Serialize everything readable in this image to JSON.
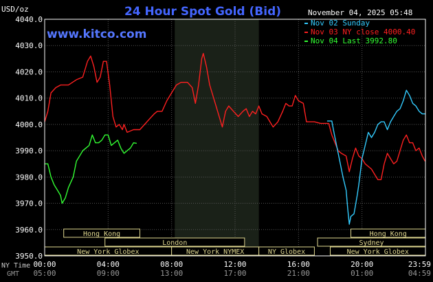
{
  "chart_data": {
    "type": "line",
    "title": "24 Hour Spot Gold (Bid)",
    "unit_label": "USD/oz",
    "timestamp": "November 04, 2025 05:48",
    "watermark": "www.kitco.com",
    "ylim": [
      3950,
      4040
    ],
    "y_ticks": [
      "4040.0",
      "4030.0",
      "4020.0",
      "4010.0",
      "4000.0",
      "3990.0",
      "3980.0",
      "3970.0",
      "3960.0",
      "3950.0"
    ],
    "x_ticks_ny": [
      "00:00",
      "04:00",
      "08:00",
      "12:00",
      "16:00",
      "20:00",
      "23:59"
    ],
    "x_ticks_gmt": [
      "05:00",
      "09:00",
      "13:00",
      "17:00",
      "21:00",
      "01:00",
      "04:59"
    ],
    "x_row_labels": {
      "ny": "NY Time",
      "gmt": "GMT"
    },
    "legend": [
      {
        "label": "Nov 02 Sunday",
        "color": "#33ccff"
      },
      {
        "label": "Nov 03 NY close 4000.40",
        "color": "#ff2020"
      },
      {
        "label": "Nov 04 Last 3992.80",
        "color": "#33ff33"
      }
    ],
    "sessions": [
      {
        "label": "Hong Kong",
        "start": 1.2,
        "end": 6.0,
        "row": 0
      },
      {
        "label": "Hong Kong",
        "start": 19.3,
        "end": 24.0,
        "row": 0
      },
      {
        "label": "London",
        "start": 3.8,
        "end": 12.6,
        "row": 1
      },
      {
        "label": "Sydney",
        "start": 17.2,
        "end": 24.0,
        "row": 1
      },
      {
        "label": "New York Globex",
        "start": 0.0,
        "end": 8.0,
        "row": 2
      },
      {
        "label": "New York NYMEX",
        "start": 8.0,
        "end": 13.5,
        "row": 2
      },
      {
        "label": "NY Globex",
        "start": 13.5,
        "end": 17.0,
        "row": 2
      },
      {
        "label": "New York Globex",
        "start": 18.0,
        "end": 24.0,
        "row": 2
      }
    ],
    "highlight_period": [
      8.2,
      13.5
    ],
    "series": [
      {
        "name": "Nov 03",
        "color": "#ff2020",
        "points": [
          [
            0.0,
            4001
          ],
          [
            0.2,
            4005
          ],
          [
            0.4,
            4012
          ],
          [
            0.7,
            4014
          ],
          [
            1.0,
            4015
          ],
          [
            1.5,
            4015
          ],
          [
            2.0,
            4017
          ],
          [
            2.4,
            4018
          ],
          [
            2.7,
            4024
          ],
          [
            2.9,
            4026
          ],
          [
            3.1,
            4022
          ],
          [
            3.3,
            4016
          ],
          [
            3.5,
            4018
          ],
          [
            3.7,
            4024
          ],
          [
            3.9,
            4024
          ],
          [
            4.1,
            4015
          ],
          [
            4.3,
            4003
          ],
          [
            4.5,
            3999
          ],
          [
            4.7,
            4000
          ],
          [
            4.9,
            3998
          ],
          [
            5.0,
            4000
          ],
          [
            5.2,
            3997
          ],
          [
            5.6,
            3998
          ],
          [
            6.0,
            3998
          ],
          [
            6.3,
            4000
          ],
          [
            6.6,
            4002
          ],
          [
            6.9,
            4004
          ],
          [
            7.1,
            4005
          ],
          [
            7.4,
            4005
          ],
          [
            7.7,
            4009
          ],
          [
            8.0,
            4012
          ],
          [
            8.3,
            4015
          ],
          [
            8.6,
            4016
          ],
          [
            9.0,
            4016
          ],
          [
            9.3,
            4014
          ],
          [
            9.5,
            4008
          ],
          [
            9.7,
            4015
          ],
          [
            9.9,
            4025
          ],
          [
            10.0,
            4027
          ],
          [
            10.2,
            4022
          ],
          [
            10.4,
            4015
          ],
          [
            10.6,
            4011
          ],
          [
            10.8,
            4007
          ],
          [
            11.0,
            4003
          ],
          [
            11.2,
            3999
          ],
          [
            11.4,
            4005
          ],
          [
            11.6,
            4007
          ],
          [
            11.9,
            4005
          ],
          [
            12.2,
            4003
          ],
          [
            12.5,
            4005
          ],
          [
            12.7,
            4006
          ],
          [
            12.9,
            4003
          ],
          [
            13.1,
            4005
          ],
          [
            13.3,
            4004
          ],
          [
            13.5,
            4007
          ],
          [
            13.7,
            4004
          ],
          [
            14.0,
            4003
          ],
          [
            14.2,
            4001
          ],
          [
            14.4,
            3999
          ],
          [
            14.7,
            4001
          ],
          [
            15.0,
            4005
          ],
          [
            15.2,
            4008
          ],
          [
            15.4,
            4007
          ],
          [
            15.6,
            4007
          ],
          [
            15.8,
            4011
          ],
          [
            16.0,
            4009
          ],
          [
            16.3,
            4008
          ],
          [
            16.5,
            4001
          ],
          [
            16.7,
            4001
          ],
          [
            17.0,
            4001
          ],
          [
            17.4,
            4000.4
          ],
          [
            17.8,
            4000.4
          ],
          [
            17.9,
            4000.4
          ],
          [
            18.1,
            3996
          ],
          [
            18.3,
            3993
          ],
          [
            18.5,
            3990
          ],
          [
            18.7,
            3989
          ],
          [
            19.0,
            3988
          ],
          [
            19.2,
            3982
          ],
          [
            19.4,
            3987
          ],
          [
            19.6,
            3991
          ],
          [
            19.8,
            3988
          ],
          [
            20.0,
            3987
          ],
          [
            20.2,
            3985
          ],
          [
            20.4,
            3984
          ],
          [
            20.6,
            3983
          ],
          [
            20.8,
            3981
          ],
          [
            21.0,
            3979
          ],
          [
            21.2,
            3979
          ],
          [
            21.4,
            3985
          ],
          [
            21.6,
            3989
          ],
          [
            21.8,
            3987
          ],
          [
            22.0,
            3985
          ],
          [
            22.2,
            3986
          ],
          [
            22.4,
            3990
          ],
          [
            22.6,
            3994
          ],
          [
            22.8,
            3996
          ],
          [
            23.0,
            3993
          ],
          [
            23.2,
            3993
          ],
          [
            23.4,
            3990
          ],
          [
            23.6,
            3991
          ],
          [
            23.8,
            3988
          ],
          [
            23.98,
            3986
          ]
        ]
      },
      {
        "name": "Nov 02",
        "color": "#33ccff",
        "points": [
          [
            17.8,
            4001.3
          ],
          [
            18.1,
            4001.3
          ],
          [
            18.2,
            3998
          ],
          [
            18.4,
            3992
          ],
          [
            18.6,
            3986
          ],
          [
            18.8,
            3980
          ],
          [
            19.0,
            3975
          ],
          [
            19.1,
            3968
          ],
          [
            19.2,
            3962
          ],
          [
            19.3,
            3965
          ],
          [
            19.5,
            3966
          ],
          [
            19.7,
            3973
          ],
          [
            19.8,
            3977
          ],
          [
            20.0,
            3987
          ],
          [
            20.2,
            3992
          ],
          [
            20.4,
            3997
          ],
          [
            20.6,
            3995
          ],
          [
            20.8,
            3997
          ],
          [
            21.0,
            4000
          ],
          [
            21.2,
            4001
          ],
          [
            21.4,
            4001
          ],
          [
            21.6,
            3998
          ],
          [
            21.8,
            4001
          ],
          [
            22.0,
            4003
          ],
          [
            22.2,
            4005
          ],
          [
            22.4,
            4006
          ],
          [
            22.6,
            4009
          ],
          [
            22.8,
            4013
          ],
          [
            23.0,
            4011
          ],
          [
            23.2,
            4008
          ],
          [
            23.4,
            4007
          ],
          [
            23.6,
            4005
          ],
          [
            23.8,
            4004
          ],
          [
            23.98,
            4004
          ]
        ]
      },
      {
        "name": "Nov 04",
        "color": "#33ff33",
        "points": [
          [
            0.0,
            3985
          ],
          [
            0.2,
            3985
          ],
          [
            0.4,
            3980
          ],
          [
            0.6,
            3977
          ],
          [
            0.8,
            3975
          ],
          [
            1.0,
            3973
          ],
          [
            1.1,
            3970
          ],
          [
            1.3,
            3972
          ],
          [
            1.5,
            3976
          ],
          [
            1.8,
            3980
          ],
          [
            2.0,
            3986
          ],
          [
            2.2,
            3988
          ],
          [
            2.4,
            3990
          ],
          [
            2.6,
            3991
          ],
          [
            2.8,
            3992
          ],
          [
            3.0,
            3996
          ],
          [
            3.2,
            3993
          ],
          [
            3.4,
            3993
          ],
          [
            3.6,
            3994
          ],
          [
            3.8,
            3996
          ],
          [
            4.0,
            3996
          ],
          [
            4.2,
            3992
          ],
          [
            4.4,
            3993
          ],
          [
            4.6,
            3994
          ],
          [
            4.8,
            3991
          ],
          [
            5.0,
            3989
          ],
          [
            5.2,
            3990
          ],
          [
            5.4,
            3991
          ],
          [
            5.6,
            3993
          ],
          [
            5.8,
            3992.8
          ]
        ]
      }
    ]
  }
}
